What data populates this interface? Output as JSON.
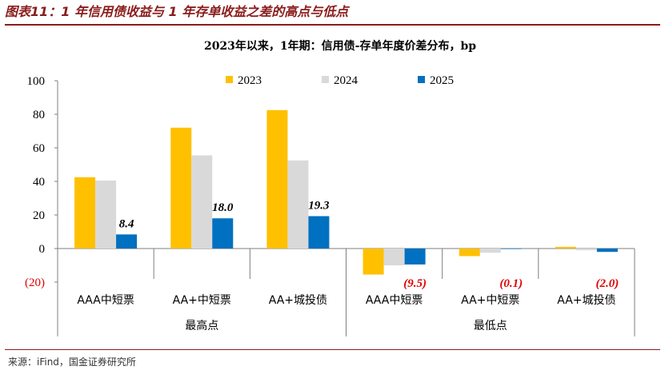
{
  "figure": {
    "title": "图表11：1 年信用债收益与 1 年存单收益之差的高点与低点",
    "source": "来源：iFind，国金证券研究所"
  },
  "colors": {
    "title": "#8a1c1c",
    "s2023": "#ffc000",
    "s2024": "#d9d9d9",
    "s2025": "#0070c0",
    "negative_label": "#e00000"
  },
  "chart_data": {
    "type": "bar",
    "title": "2023年以来，1年期：信用债-存单年度价差分布，bp",
    "ylim": [
      -20,
      100
    ],
    "yticks": [
      -20,
      0,
      20,
      40,
      60,
      80,
      100
    ],
    "ytick_labels": [
      "(20)",
      "0",
      "20",
      "40",
      "60",
      "80",
      "100"
    ],
    "categories": [
      "AAA中短票",
      "AA+中短票",
      "AA+城投债",
      "AAA中短票",
      "AA+中短票",
      "AA+城投债"
    ],
    "groups": [
      {
        "label": "最高点",
        "span": [
          0,
          2
        ]
      },
      {
        "label": "最低点",
        "span": [
          3,
          5
        ]
      }
    ],
    "series": [
      {
        "name": "2023",
        "color": "#ffc000",
        "values": [
          42.5,
          72,
          82.5,
          -15.5,
          -4.5,
          1.0
        ]
      },
      {
        "name": "2024",
        "color": "#d9d9d9",
        "values": [
          40.5,
          55.5,
          52.5,
          -10.0,
          -2.5,
          -1.0
        ]
      },
      {
        "name": "2025",
        "color": "#0070c0",
        "values": [
          8.4,
          18.0,
          19.3,
          -9.5,
          -0.1,
          -2.0
        ]
      }
    ],
    "data_labels": [
      "8.4",
      "18.0",
      "19.3",
      "(9.5)",
      "(0.1)",
      "(2.0)"
    ],
    "legend": {
      "position": "top",
      "entries": [
        "2023",
        "2024",
        "2025"
      ]
    },
    "grid": false
  }
}
